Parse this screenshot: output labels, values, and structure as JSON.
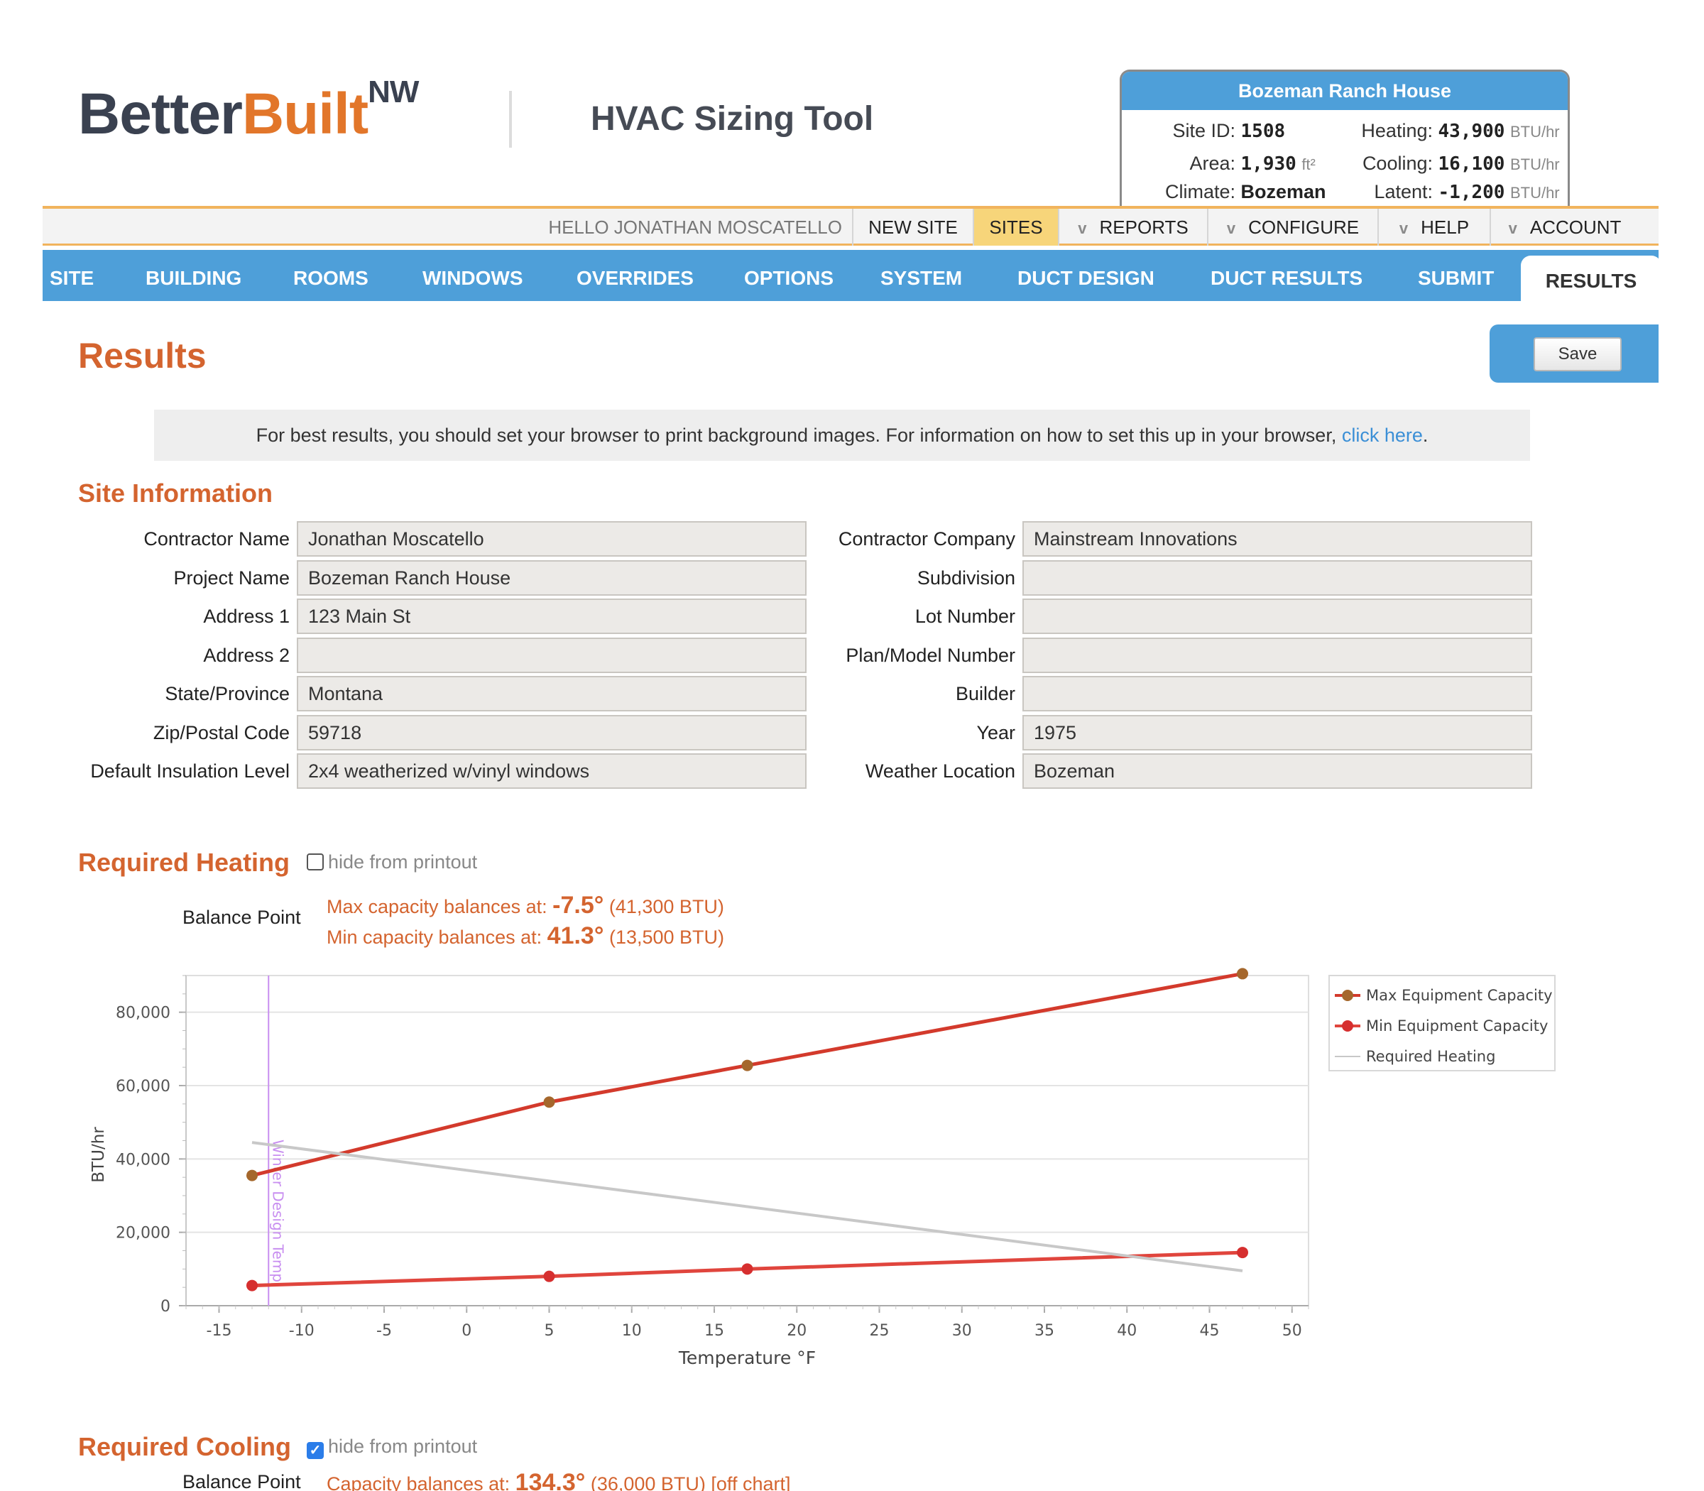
{
  "brand": {
    "better": "Better",
    "built": "Built",
    "sup": "NW"
  },
  "app_title": "HVAC Sizing Tool",
  "site_card": {
    "title": "Bozeman Ranch House",
    "site_id_label": "Site ID:",
    "site_id": "1508",
    "area_label": "Area:",
    "area": "1,930",
    "area_unit": "ft²",
    "climate_label": "Climate:",
    "climate": "Bozeman",
    "heating_label": "Heating:",
    "heating": "43,900",
    "heating_unit": "BTU/hr",
    "cooling_label": "Cooling:",
    "cooling": "16,100",
    "cooling_unit": "BTU/hr",
    "latent_label": "Latent:",
    "latent": "-1,200",
    "latent_unit": "BTU/hr"
  },
  "util_nav": {
    "hello": "HELLO JONATHAN MOSCATELLO",
    "new_site": "NEW SITE",
    "sites": "SITES",
    "reports": "REPORTS",
    "configure": "CONFIGURE",
    "help": "HELP",
    "account": "ACCOUNT",
    "chevron": "v"
  },
  "tabs": [
    "SITE",
    "BUILDING",
    "ROOMS",
    "WINDOWS",
    "OVERRIDES",
    "OPTIONS",
    "SYSTEM",
    "DUCT DESIGN",
    "DUCT RESULTS",
    "SUBMIT",
    "RESULTS"
  ],
  "active_tab": "RESULTS",
  "page_title": "Results",
  "save_label": "Save",
  "notice": {
    "text": "For best results, you should set your browser to print background images. For information on how to set this up in your browser, ",
    "link": "click here",
    "end": "."
  },
  "site_info": {
    "title": "Site Information",
    "left": [
      {
        "label": "Contractor Name",
        "value": "Jonathan Moscatello"
      },
      {
        "label": "Project Name",
        "value": "Bozeman Ranch House"
      },
      {
        "label": "Address 1",
        "value": "123 Main St"
      },
      {
        "label": "Address 2",
        "value": ""
      },
      {
        "label": "State/Province",
        "value": "Montana"
      },
      {
        "label": "Zip/Postal Code",
        "value": "59718"
      },
      {
        "label": "Default Insulation Level",
        "value": "2x4 weatherized w/vinyl windows"
      }
    ],
    "right": [
      {
        "label": "Contractor Company",
        "value": "Mainstream Innovations"
      },
      {
        "label": "Subdivision",
        "value": ""
      },
      {
        "label": "Lot Number",
        "value": ""
      },
      {
        "label": "Plan/Model Number",
        "value": ""
      },
      {
        "label": "Builder",
        "value": ""
      },
      {
        "label": "Year",
        "value": "1975"
      },
      {
        "label": "Weather Location",
        "value": "Bozeman"
      }
    ]
  },
  "heating": {
    "title": "Required Heating",
    "hide_label": "hide from printout",
    "hide_checked": false,
    "balance_label": "Balance Point",
    "max_text": "Max capacity balances at: ",
    "max_value": "-7.5°",
    "max_btu": " (41,300 BTU)",
    "min_text": "Min capacity balances at: ",
    "min_value": "41.3°",
    "min_btu": " (13,500 BTU)"
  },
  "cooling": {
    "title": "Required Cooling",
    "hide_label": "hide from printout",
    "hide_checked": true,
    "balance_label": "Balance Point",
    "cap_text": "Capacity balances at: ",
    "cap_value": "134.3°",
    "cap_btu": " (36,000 BTU) [off chart]"
  },
  "colors": {
    "accent_orange": "#d4642f",
    "nav_blue": "#4e9fd9",
    "max_line": "#d33a2c",
    "max_marker": "#a5672c",
    "min_line": "#e0453d",
    "required_line": "#c8c8c8",
    "design_line": "#c88ef0"
  },
  "chart_data": {
    "type": "line",
    "title": "",
    "xlabel": "Temperature °F",
    "ylabel": "BTU/hr",
    "xlim": [
      -17,
      51
    ],
    "ylim": [
      0,
      90000
    ],
    "x_ticks": [
      -15,
      -10,
      -5,
      0,
      5,
      10,
      15,
      20,
      25,
      30,
      35,
      40,
      45,
      50
    ],
    "y_ticks": [
      0,
      20000,
      40000,
      60000,
      80000
    ],
    "y_tick_labels": [
      "0",
      "20,000",
      "40,000",
      "60,000",
      "80,000"
    ],
    "grid": true,
    "legend_position": "right",
    "series": [
      {
        "name": "Max Equipment Capacity",
        "color": "#d33a2c",
        "marker_color": "#a5672c",
        "x": [
          -13,
          5,
          17,
          47
        ],
        "y": [
          35500,
          55500,
          65500,
          90500
        ]
      },
      {
        "name": "Min Equipment Capacity",
        "color": "#e0453d",
        "marker_color": "#d62f2f",
        "x": [
          -13,
          5,
          17,
          47
        ],
        "y": [
          5500,
          8000,
          10000,
          14500
        ]
      },
      {
        "name": "Required Heating",
        "color": "#c8c8c8",
        "x": [
          -13,
          47
        ],
        "y": [
          44500,
          9500
        ]
      }
    ],
    "annotations": [
      {
        "type": "vline",
        "x": -12,
        "label": "Winter Design Temp",
        "color": "#c88ef0"
      }
    ]
  }
}
